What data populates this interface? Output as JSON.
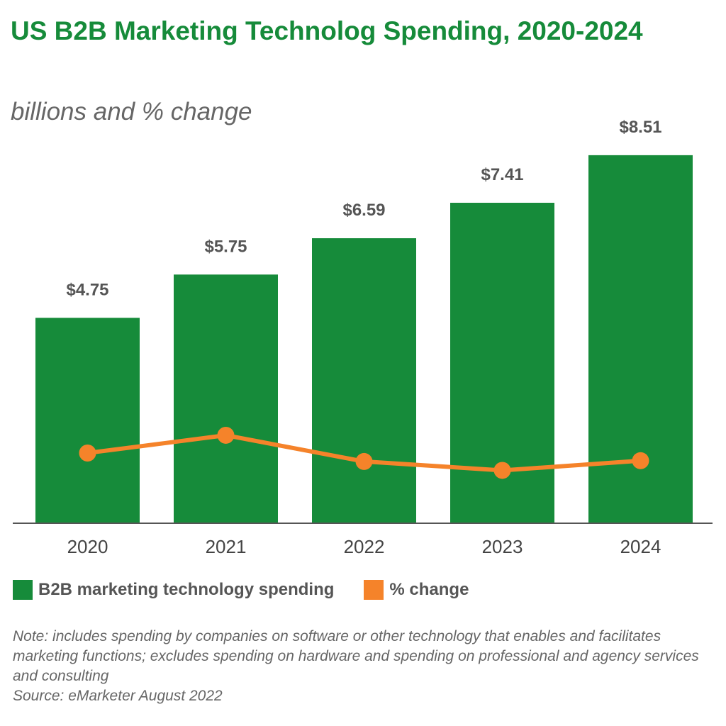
{
  "chart_data": {
    "type": "bar+line",
    "title": "US B2B Marketing Technolog Spending, 2020-2024",
    "subtitle": "billions and % change",
    "categories": [
      "2020",
      "2021",
      "2022",
      "2023",
      "2024"
    ],
    "series": [
      {
        "name": "B2B marketing technology spending",
        "type": "bar",
        "values": [
          4.75,
          5.75,
          6.59,
          7.41,
          8.51
        ],
        "labels": [
          "$4.75",
          "$5.75",
          "$6.59",
          "$7.41",
          "$8.51"
        ],
        "color": "#168b3a"
      },
      {
        "name": "% change",
        "type": "line",
        "values": [
          16.7,
          21.1,
          14.6,
          12.4,
          14.8
        ],
        "color": "#f5832a"
      }
    ],
    "grid": false,
    "legend": "bottom-left",
    "note": "Note: includes spending by companies on software or other technology that enables and facilitates marketing functions; excludes spending on hardware and spending on professional and agency services and consulting",
    "source": "Source: eMarketer August 2022"
  }
}
